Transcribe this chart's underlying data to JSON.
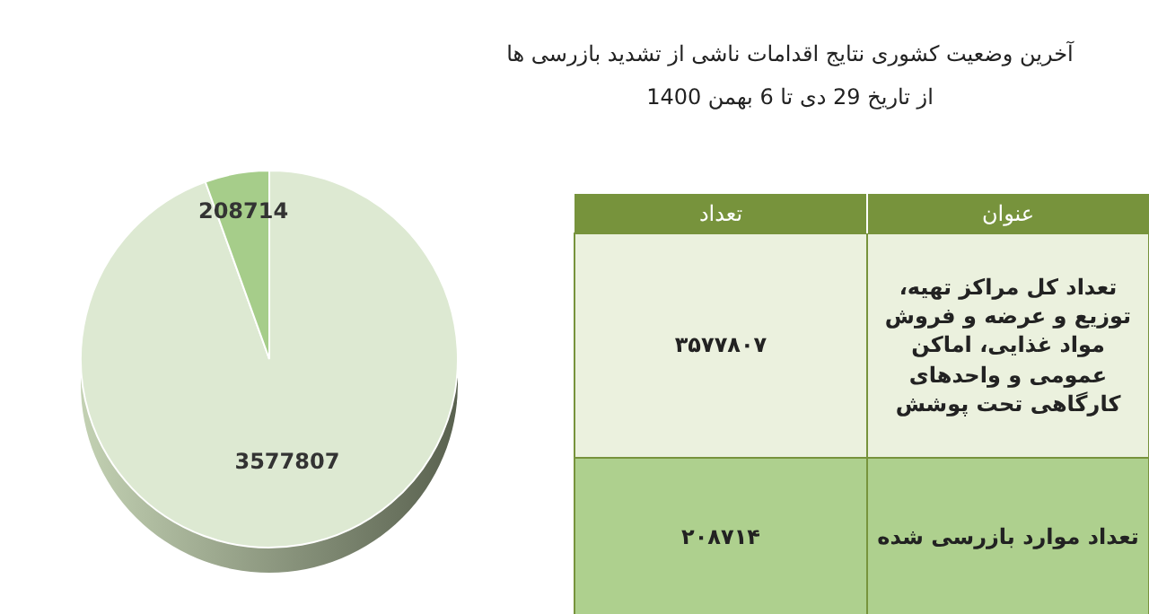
{
  "chart_data": [
    {
      "type": "pie",
      "title": "آخرین وضعیت کشوری نتایج اقدامات ناشی از تشدید بازرسی ها",
      "subtitle": "از تاریخ 29 دی تا 6 بهمن 1400",
      "categories": [
        null,
        null
      ],
      "values": [
        3577807,
        208714
      ],
      "colors": [
        "#dde9d2",
        "#a6cd8a"
      ],
      "data_labels": true
    },
    {
      "type": "other",
      "annotations": [
        "عنوان",
        "تعداد",
        "تعداد کل مراکز تهیه، توزیع و عرضه و فروش مواد غذایی، اماکن عمومی و واحدهای کارگاهی تحت پوشش",
        "۳۵۷۷۸۰۷",
        "تعداد موارد بازرسی شده",
        "۲۰۸۷۱۴"
      ]
    }
  ]
}
